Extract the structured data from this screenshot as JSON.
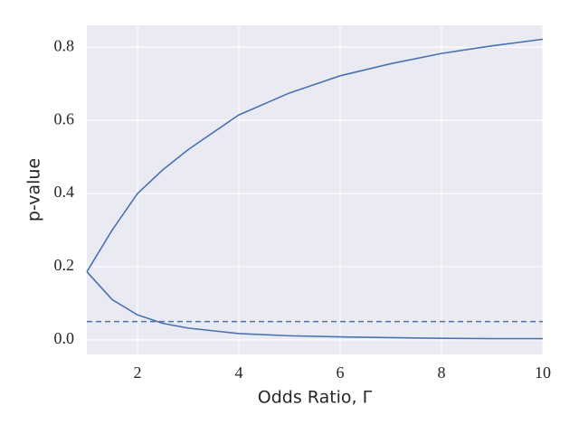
{
  "chart_data": {
    "type": "line",
    "xlabel": "Odds Ratio, Γ",
    "ylabel": "p-value",
    "x": [
      1,
      1.5,
      2,
      2.5,
      3,
      4,
      5,
      6,
      7,
      8,
      9,
      10
    ],
    "series": [
      {
        "color": "#4c72b0",
        "values": [
          0.186,
          0.3,
          0.4,
          0.465,
          0.52,
          0.615,
          0.675,
          0.722,
          0.755,
          0.783,
          0.804,
          0.822
        ]
      },
      {
        "color": "#4c72b0",
        "values": [
          0.186,
          0.11,
          0.068,
          0.045,
          0.032,
          0.017,
          0.011,
          0.008,
          0.006,
          0.004,
          0.003,
          0.003
        ]
      }
    ],
    "reference_line": {
      "value": 0.05,
      "color": "#4c72b0",
      "style": "dashed"
    },
    "xlim": [
      1,
      10
    ],
    "ylim": [
      -0.04,
      0.86
    ],
    "xticks": [
      2,
      4,
      6,
      8,
      10
    ],
    "yticks": [
      {
        "value": 0,
        "label": "0.0"
      },
      0.2,
      0.4,
      0.6,
      0.8
    ],
    "grid": true
  }
}
